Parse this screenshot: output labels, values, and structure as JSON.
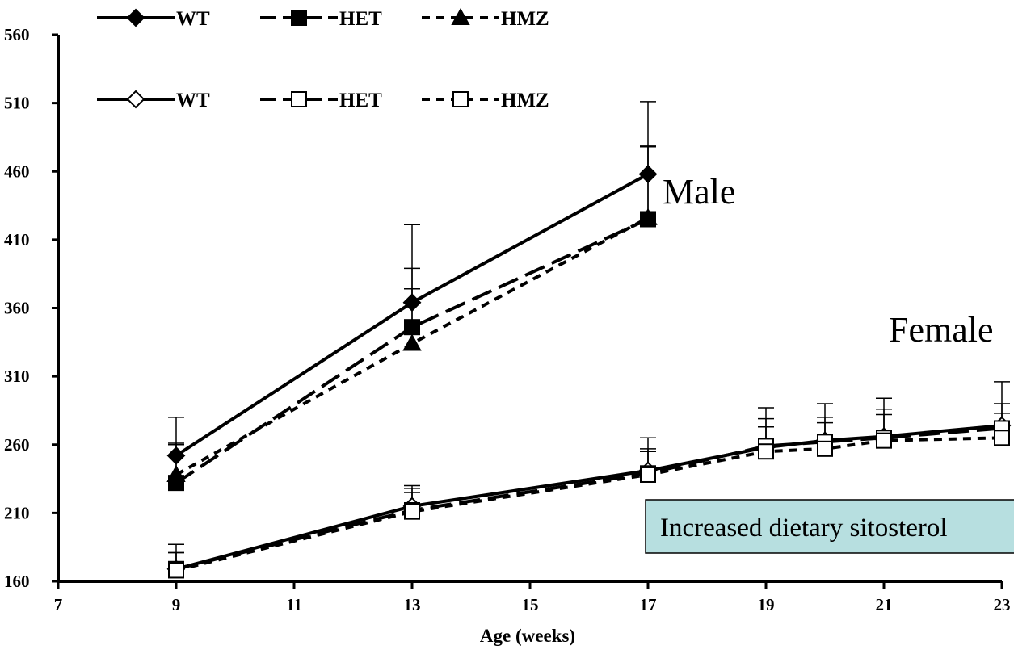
{
  "chart_data": {
    "type": "line",
    "title": "",
    "xlabel": "Age (weeks)",
    "ylabel": "",
    "xlim": [
      7,
      23
    ],
    "ylim": [
      160,
      560
    ],
    "x_ticks": [
      7,
      9,
      11,
      13,
      15,
      17,
      19,
      21,
      23
    ],
    "y_ticks": [
      160,
      210,
      260,
      310,
      360,
      410,
      460,
      510,
      560
    ],
    "grid": false,
    "legend_position": "top-left",
    "group_labels": {
      "male": "Male",
      "female": "Female"
    },
    "annotation": "Increased dietary sitosterol",
    "annotation_fill": "#b7dfe0",
    "series": [
      {
        "name": "WT",
        "group": "male",
        "marker": "diamond",
        "filled": true,
        "line": "solid",
        "x": [
          9,
          13,
          17
        ],
        "y": [
          252,
          364,
          458
        ],
        "error": [
          28,
          57,
          53
        ]
      },
      {
        "name": "HET",
        "group": "male",
        "marker": "square",
        "filled": true,
        "line": "longdash",
        "x": [
          9,
          13,
          17
        ],
        "y": [
          232,
          346,
          425
        ],
        "error": [
          29,
          43,
          54
        ]
      },
      {
        "name": "HMZ",
        "group": "male",
        "marker": "triangle",
        "filled": true,
        "line": "shortdash",
        "x": [
          9,
          13,
          17
        ],
        "y": [
          238,
          334,
          426
        ],
        "error": [
          22,
          40,
          52
        ]
      },
      {
        "name": "WT",
        "group": "female",
        "marker": "diamond",
        "filled": false,
        "line": "solid",
        "x": [
          9,
          13,
          17,
          19,
          20,
          21,
          23
        ],
        "y": [
          169,
          215,
          241,
          258,
          263,
          266,
          274
        ],
        "error": [
          18,
          15,
          24,
          29,
          27,
          28,
          32
        ]
      },
      {
        "name": "HET",
        "group": "female",
        "marker": "square",
        "filled": false,
        "line": "longdash",
        "x": [
          9,
          13,
          17,
          19,
          20,
          21,
          23
        ],
        "y": [
          169,
          212,
          239,
          259,
          262,
          265,
          272
        ],
        "error": [
          12,
          16,
          18,
          20,
          18,
          21,
          18
        ]
      },
      {
        "name": "HMZ",
        "group": "female",
        "marker": "square",
        "filled": false,
        "line": "shortdash",
        "x": [
          9,
          13,
          17,
          19,
          20,
          21,
          23
        ],
        "y": [
          168,
          211,
          238,
          255,
          257,
          263,
          265
        ],
        "error": [
          13,
          14,
          17,
          18,
          19,
          19,
          18
        ]
      }
    ]
  }
}
